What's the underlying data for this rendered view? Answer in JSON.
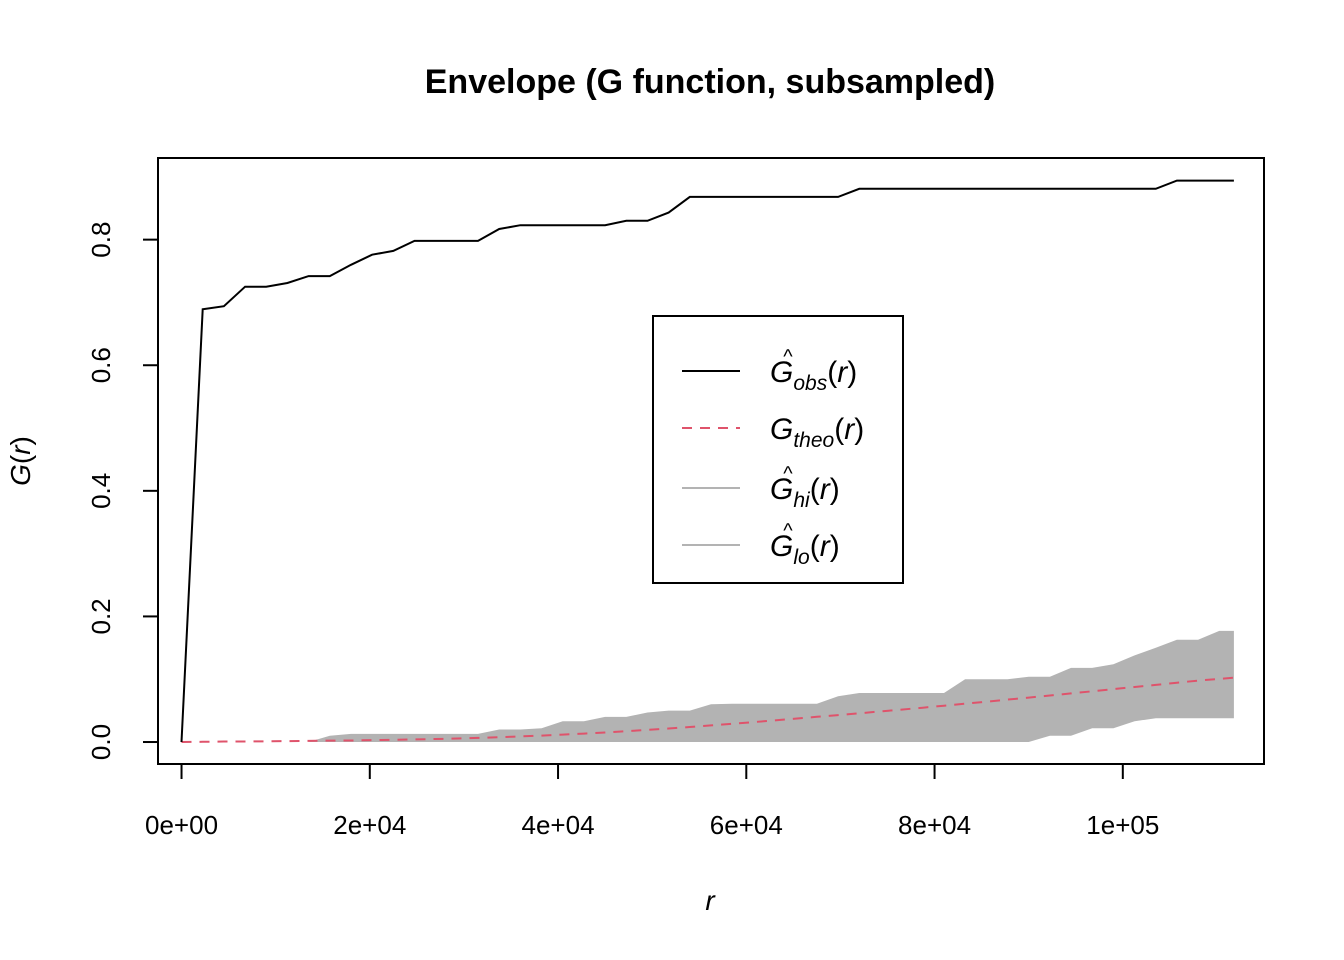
{
  "chart_data": {
    "type": "line",
    "title": "Envelope (G function, subsampled)",
    "xlabel": "r",
    "ylabel": "G(r)",
    "ylabel_parts": {
      "base": "G",
      "open": "(",
      "var": "r",
      "close": ")"
    },
    "xlim": [
      -2500,
      115000
    ],
    "ylim": [
      -0.035,
      0.93
    ],
    "xticks": [
      0,
      20000,
      40000,
      60000,
      80000,
      100000
    ],
    "xtick_labels": [
      "0e+00",
      "2e+04",
      "4e+04",
      "6e+04",
      "8e+04",
      "1e+05"
    ],
    "yticks": [
      0.0,
      0.2,
      0.4,
      0.6,
      0.8
    ],
    "ytick_labels": [
      "0.0",
      "0.2",
      "0.4",
      "0.6",
      "0.8"
    ],
    "grid": false,
    "legend_position": "center",
    "colors": {
      "obs": "#000000",
      "theo": "#DF536B",
      "envelope": "#B3B3B3",
      "frame": "#000000"
    },
    "x": [
      0,
      2250,
      4500,
      6750,
      9000,
      11250,
      13500,
      15750,
      18000,
      20250,
      22500,
      24750,
      27000,
      29250,
      31500,
      33750,
      36000,
      38250,
      40500,
      42750,
      45000,
      47250,
      49500,
      51750,
      54000,
      56250,
      58500,
      60750,
      63000,
      65250,
      67500,
      69750,
      72000,
      74250,
      76500,
      78750,
      81000,
      83250,
      85500,
      87750,
      90000,
      92250,
      94500,
      96750,
      99000,
      101250,
      103500,
      105750,
      108000,
      110250,
      111800
    ],
    "series": [
      {
        "name": "obs",
        "style": "solid",
        "values": [
          0.0,
          0.689,
          0.694,
          0.725,
          0.725,
          0.731,
          0.742,
          0.742,
          0.76,
          0.776,
          0.782,
          0.798,
          0.798,
          0.798,
          0.798,
          0.817,
          0.823,
          0.823,
          0.823,
          0.823,
          0.823,
          0.83,
          0.83,
          0.843,
          0.868,
          0.868,
          0.868,
          0.868,
          0.868,
          0.868,
          0.868,
          0.868,
          0.881,
          0.881,
          0.881,
          0.881,
          0.881,
          0.881,
          0.881,
          0.881,
          0.881,
          0.881,
          0.881,
          0.881,
          0.881,
          0.881,
          0.881,
          0.894,
          0.894,
          0.894,
          0.894
        ]
      },
      {
        "name": "theo",
        "style": "dashed",
        "values": [
          0.0,
          0.0004,
          0.0008,
          0.0009,
          0.0012,
          0.0015,
          0.0018,
          0.0022,
          0.0025,
          0.003,
          0.0036,
          0.0042,
          0.0048,
          0.0056,
          0.0066,
          0.0077,
          0.0089,
          0.0102,
          0.0118,
          0.0134,
          0.0152,
          0.0172,
          0.0193,
          0.0215,
          0.0239,
          0.0264,
          0.029,
          0.0317,
          0.0345,
          0.0373,
          0.0401,
          0.0429,
          0.0458,
          0.0487,
          0.0517,
          0.0547,
          0.0578,
          0.061,
          0.0642,
          0.0675,
          0.0708,
          0.0741,
          0.0774,
          0.0808,
          0.0842,
          0.0876,
          0.091,
          0.0944,
          0.0978,
          0.1005,
          0.1025
        ]
      },
      {
        "name": "hi",
        "style": "band-upper",
        "values": [
          0.0,
          0.0,
          0.0,
          0.0,
          0.0,
          0.0,
          0.0,
          0.01,
          0.013,
          0.013,
          0.013,
          0.013,
          0.013,
          0.013,
          0.013,
          0.02,
          0.02,
          0.022,
          0.033,
          0.033,
          0.04,
          0.04,
          0.047,
          0.05,
          0.05,
          0.06,
          0.061,
          0.061,
          0.061,
          0.061,
          0.061,
          0.073,
          0.078,
          0.078,
          0.078,
          0.078,
          0.078,
          0.1,
          0.1,
          0.1,
          0.104,
          0.104,
          0.118,
          0.118,
          0.124,
          0.138,
          0.15,
          0.163,
          0.163,
          0.177,
          0.177
        ]
      },
      {
        "name": "lo",
        "style": "band-lower",
        "values": [
          0.0,
          0.0,
          0.0,
          0.0,
          0.0,
          0.0,
          0.0,
          0.0,
          0.0,
          0.0,
          0.0,
          0.0,
          0.0,
          0.0,
          0.0,
          0.0,
          0.0,
          0.0,
          0.0,
          0.0,
          0.0,
          0.0,
          0.0,
          0.0,
          0.0,
          0.0,
          0.0,
          0.0,
          0.0,
          0.0,
          0.0,
          0.0,
          0.0,
          0.0,
          0.0,
          0.0,
          0.0,
          0.0,
          0.0,
          0.0,
          0.0,
          0.01,
          0.01,
          0.022,
          0.022,
          0.033,
          0.038,
          0.038,
          0.038,
          0.038,
          0.038
        ]
      }
    ],
    "legend": [
      {
        "key": "obs",
        "base": "G",
        "hat": "^",
        "sub": "obs",
        "open": "(",
        "var": "r",
        "close": ")",
        "color": "#000000",
        "style": "solid"
      },
      {
        "key": "theo",
        "base": "G",
        "hat": "",
        "sub": "theo",
        "open": "(",
        "var": "r",
        "close": ")",
        "color": "#DF536B",
        "style": "dashed"
      },
      {
        "key": "hi",
        "base": "G",
        "hat": "^",
        "sub": "hi",
        "open": "(",
        "var": "r",
        "close": ")",
        "color": "#B3B3B3",
        "style": "solid"
      },
      {
        "key": "lo",
        "base": "G",
        "hat": "^",
        "sub": "lo",
        "open": "(",
        "var": "r",
        "close": ")",
        "color": "#B3B3B3",
        "style": "solid"
      }
    ]
  }
}
